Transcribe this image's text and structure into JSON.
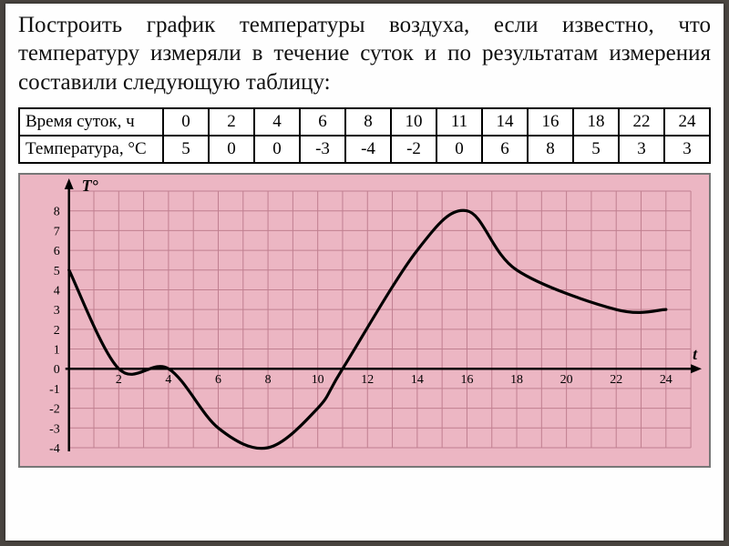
{
  "task": "Построить график температуры воздуха, если известно, что температуру измеряли в течение суток и по результатам измерения составили следующую таблицу:",
  "table": {
    "rows": [
      {
        "header": "Время суток, ч",
        "cells": [
          "0",
          "2",
          "4",
          "6",
          "8",
          "10",
          "11",
          "14",
          "16",
          "18",
          "22",
          "24"
        ]
      },
      {
        "header": "Температура, °C",
        "cells": [
          "5",
          "0",
          "0",
          "-3",
          "-4",
          "-2",
          "0",
          "6",
          "8",
          "5",
          "3",
          "3"
        ]
      }
    ]
  },
  "chart": {
    "type": "line",
    "background_color": "#ecb6c3",
    "grid_color": "#c07f90",
    "axis_color": "#000000",
    "curve_color": "#000000",
    "curve_width": 3.2,
    "xlim": [
      0,
      25
    ],
    "ylim": [
      -4,
      9
    ],
    "x_ticks": [
      2,
      4,
      6,
      8,
      10,
      12,
      14,
      16,
      18,
      20,
      22,
      24
    ],
    "y_ticks_pos": [
      1,
      2,
      3,
      4,
      5,
      6,
      7,
      8
    ],
    "y_ticks_neg": [
      -1,
      -2,
      -3,
      -4
    ],
    "y_zero_label": "0",
    "x_axis_label": "t",
    "y_axis_label": "T°",
    "label_fontsize": 14,
    "axis_label_fontsize": 18,
    "points": [
      {
        "x": 0,
        "y": 5
      },
      {
        "x": 2,
        "y": 0
      },
      {
        "x": 4,
        "y": 0
      },
      {
        "x": 6,
        "y": -3
      },
      {
        "x": 8,
        "y": -4
      },
      {
        "x": 10,
        "y": -2
      },
      {
        "x": 11,
        "y": 0
      },
      {
        "x": 14,
        "y": 6
      },
      {
        "x": 16,
        "y": 8
      },
      {
        "x": 18,
        "y": 5
      },
      {
        "x": 22,
        "y": 3
      },
      {
        "x": 24,
        "y": 3
      }
    ]
  }
}
